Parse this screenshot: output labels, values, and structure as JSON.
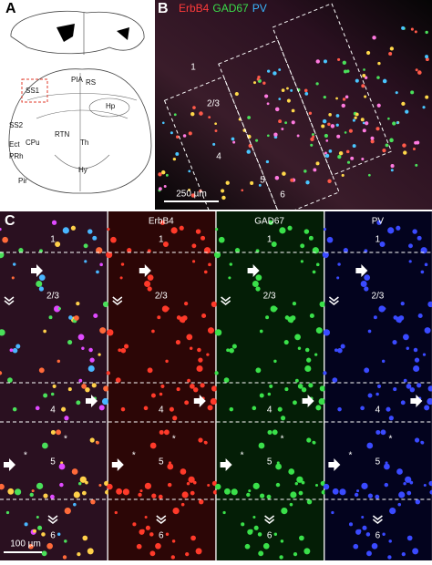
{
  "panels": {
    "a": {
      "label": "A",
      "regions": [
        "PIA",
        "RS",
        "SS1",
        "Hp",
        "SS2",
        "RTN",
        "Th",
        "Ect",
        "CPu",
        "PRh",
        "Hy",
        "Pir"
      ]
    },
    "b": {
      "label": "B",
      "channels": [
        {
          "name": "ErbB4",
          "color": "#ff3a3a"
        },
        {
          "name": "GAD67",
          "color": "#3adc4a"
        },
        {
          "name": "PV",
          "color": "#39b6ff"
        }
      ],
      "layers": [
        "1",
        "2/3",
        "4",
        "5",
        "6"
      ],
      "scale_bar": "250 µm"
    },
    "c": {
      "label": "C",
      "columns": [
        "ErbB4",
        "GAD67",
        "PV"
      ],
      "layers": [
        "1",
        "2/3",
        "4",
        "5",
        "6"
      ],
      "scale_bar": "100 µm",
      "marker": "*"
    }
  }
}
